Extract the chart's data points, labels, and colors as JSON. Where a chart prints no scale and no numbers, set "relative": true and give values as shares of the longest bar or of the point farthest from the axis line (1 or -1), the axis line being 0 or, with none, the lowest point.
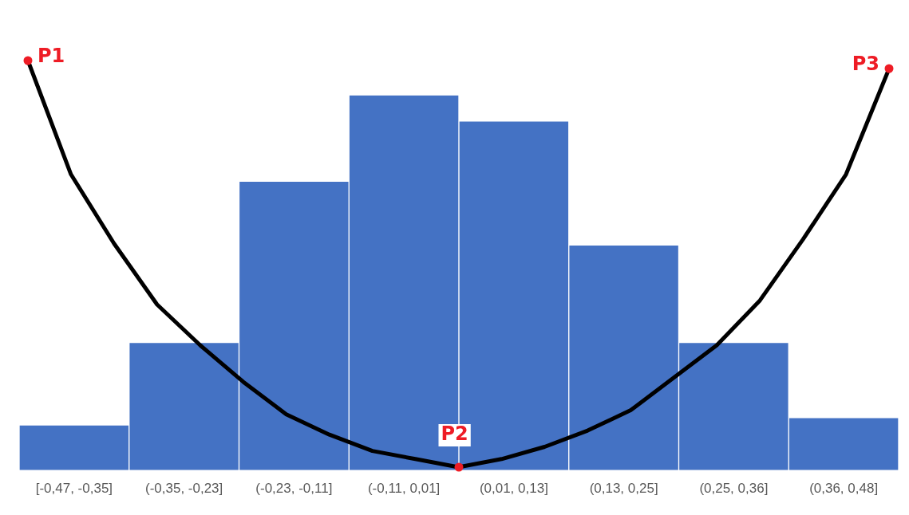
{
  "chart_data": [
    {
      "type": "bar",
      "relative": true,
      "color": "#4472c4",
      "categories": [
        "[-0,47, -0,35]",
        "(-0,35, -0,23]",
        "(-0,23, -0,11]",
        "(-0,11, 0,01]",
        "(0,01, 0,13]",
        "(0,13, 0,25]",
        "(0,25, 0,36]",
        "(0,36, 0,48]"
      ],
      "values": [
        0.12,
        0.34,
        0.77,
        1.0,
        0.93,
        0.6,
        0.34,
        0.14
      ]
    },
    {
      "type": "line",
      "relative": true,
      "color": "#000000",
      "categories": [
        null,
        null,
        null,
        null,
        null,
        null,
        null,
        null,
        null,
        null,
        null,
        null,
        null,
        null,
        null,
        null,
        null,
        null,
        null,
        null,
        null
      ],
      "values": [
        1.0,
        0.72,
        0.55,
        0.4,
        0.3,
        0.21,
        0.13,
        0.08,
        0.04,
        0.02,
        0,
        0.02,
        0.05,
        0.09,
        0.14,
        0.22,
        0.3,
        0.41,
        0.56,
        0.72,
        0.98
      ],
      "annotations": [
        "P1",
        "P2",
        "P3"
      ]
    }
  ]
}
